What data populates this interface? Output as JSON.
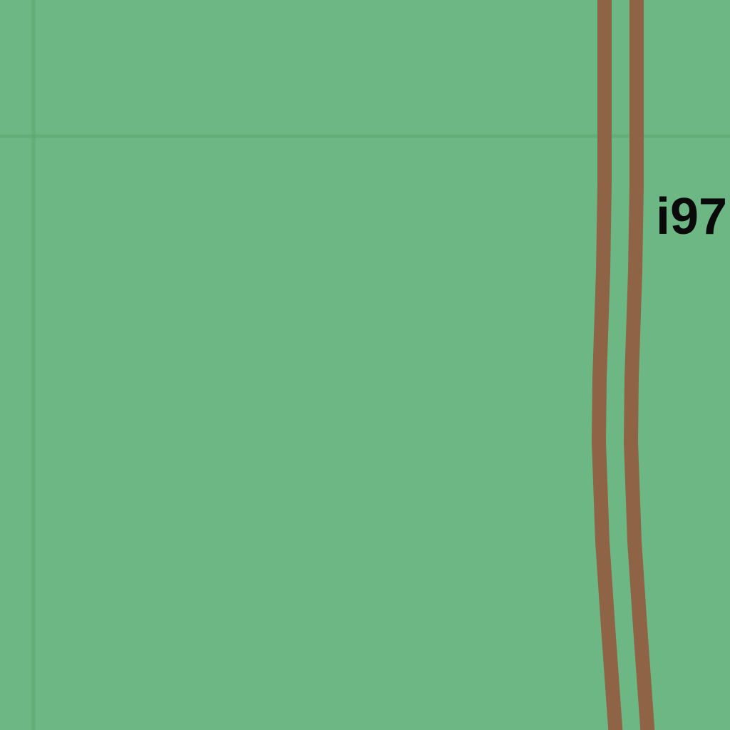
{
  "map": {
    "background_color": "#6db784",
    "grid_color": "#5aa66f",
    "road_color": "#8f6446",
    "label_color": "#0a0a0a",
    "road_label": "i97"
  }
}
